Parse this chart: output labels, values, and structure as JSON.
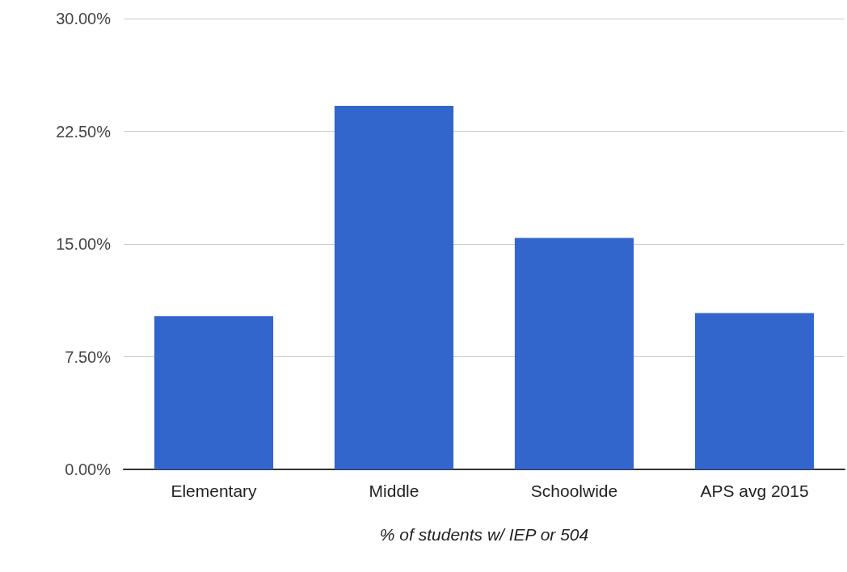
{
  "chart_data": {
    "type": "bar",
    "xlabel": "% of students w/ IEP or 504",
    "categories": [
      "Elementary",
      "Middle",
      "Schoolwide",
      "APS avg 2015"
    ],
    "values": [
      10.2,
      24.2,
      15.4,
      10.4
    ],
    "color": "#3366cc",
    "ylim": [
      0,
      30
    ],
    "yticks": [
      {
        "value": 0,
        "label": "0.00%"
      },
      {
        "value": 7.5,
        "label": "7.50%"
      },
      {
        "value": 15,
        "label": "15.00%"
      },
      {
        "value": 22.5,
        "label": "22.50%"
      },
      {
        "value": 30,
        "label": "30.00%"
      }
    ],
    "grid": "y"
  }
}
